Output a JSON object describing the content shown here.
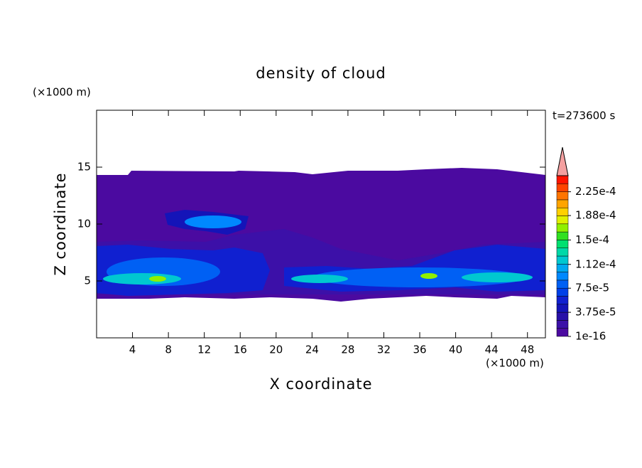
{
  "chart_data": {
    "type": "contour",
    "title": "density of cloud",
    "x_label": "X coordinate",
    "y_label": "Z coordinate",
    "x_unit": "(×1000 m)",
    "y_unit": "(×1000 m)",
    "time_label": "t=273600 s",
    "xlim": [
      0,
      50
    ],
    "ylim": [
      0,
      20
    ],
    "xticks": [
      4,
      8,
      12,
      16,
      20,
      24,
      28,
      32,
      36,
      40,
      44,
      48
    ],
    "yticks": [
      5,
      10,
      15
    ],
    "colorbar": {
      "clim": [
        1e-16,
        0.00025
      ],
      "ticks": [
        {
          "value": 1e-16,
          "label": "1e-16"
        },
        {
          "value": 3.75e-05,
          "label": "3.75e-5"
        },
        {
          "value": 7.5e-05,
          "label": "7.5e-5"
        },
        {
          "value": 0.000112,
          "label": "1.12e-4"
        },
        {
          "value": 0.00015,
          "label": "1.5e-4"
        },
        {
          "value": 0.000188,
          "label": "1.88e-4"
        },
        {
          "value": 0.000225,
          "label": "2.25e-4"
        }
      ],
      "colors": [
        "#4b0aa0",
        "#3c10a8",
        "#2810a8",
        "#1414b8",
        "#1020d0",
        "#0040e8",
        "#0060f4",
        "#0088ff",
        "#00a8f0",
        "#00c8d0",
        "#00d8a8",
        "#00e070",
        "#30e020",
        "#90f000",
        "#e0f000",
        "#ffd000",
        "#ffa400",
        "#ff7400",
        "#ff4400",
        "#ff1400"
      ],
      "extend_color": "#f4a0a0"
    }
  }
}
